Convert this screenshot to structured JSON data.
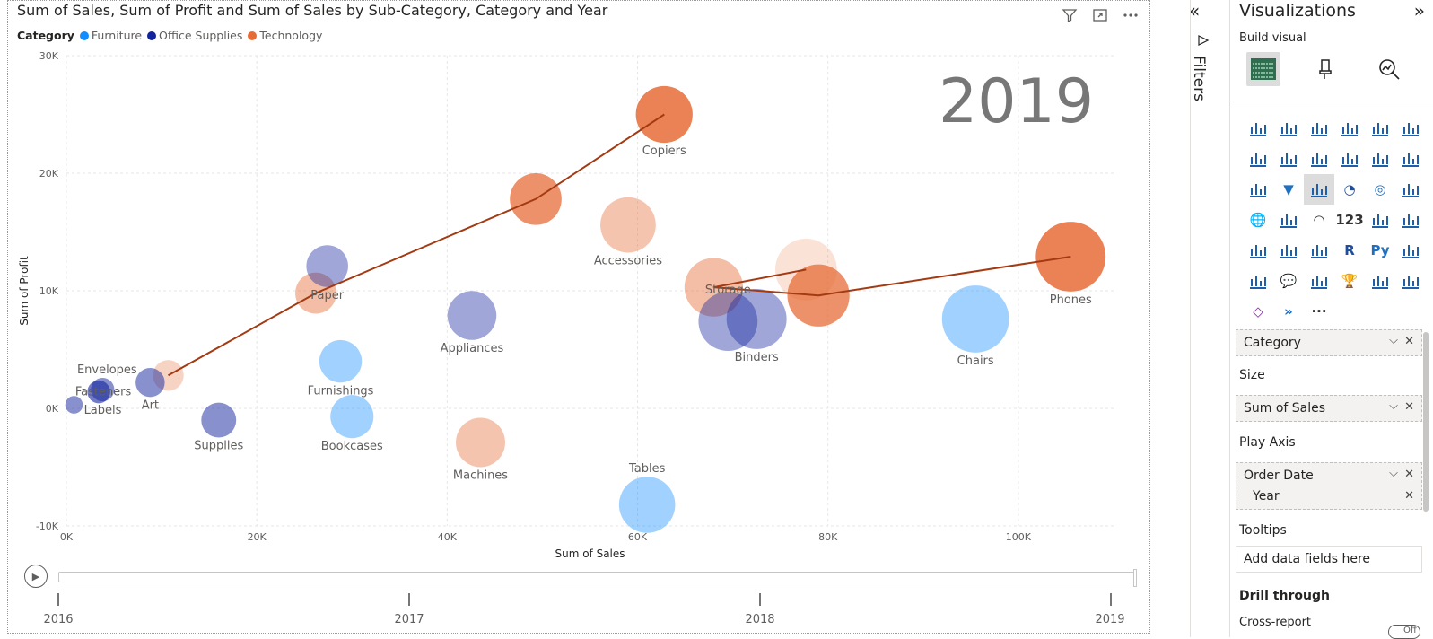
{
  "visual": {
    "title": "Sum of Sales, Sum of Profit and Sum of Sales by Sub-Category, Category and Year",
    "header_icons": [
      "filter-icon",
      "focus-mode-icon",
      "more-options-icon"
    ],
    "legend": {
      "title": "Category",
      "items": [
        {
          "label": "Furniture",
          "color": "#118DFF"
        },
        {
          "label": "Office Supplies",
          "color": "#12239E"
        },
        {
          "label": "Technology",
          "color": "#E66C37"
        }
      ]
    },
    "play_axis": {
      "ticks": [
        "2016",
        "2017",
        "2018",
        "2019"
      ],
      "current": "2019"
    }
  },
  "chart_data": {
    "type": "scatter",
    "title": "Sum of Sales, Sum of Profit and Sum of Sales by Sub-Category, Category and Year",
    "xlabel": "Sum of Sales",
    "ylabel": "Sum of Profit",
    "size_field": "Sum of Sales",
    "play_value": "2019",
    "xlim": [
      0,
      110000
    ],
    "ylim": [
      -10000,
      30000
    ],
    "x_ticks": [
      "0K",
      "20K",
      "40K",
      "60K",
      "80K",
      "100K"
    ],
    "x_tick_values": [
      0,
      20000,
      40000,
      60000,
      80000,
      100000
    ],
    "y_ticks": [
      "30K",
      "20K",
      "10K",
      "0K",
      "-10K"
    ],
    "y_tick_values": [
      30000,
      20000,
      10000,
      0,
      -10000
    ],
    "grid": true,
    "colors": {
      "Furniture": "#118DFF",
      "Office Supplies": "#12239E",
      "Technology": "#E66C37"
    },
    "points": [
      {
        "name": "Copiers",
        "category": "Technology",
        "x": 62800,
        "y": 25000,
        "opacity": 0.85
      },
      {
        "name": "Phones",
        "category": "Technology",
        "x": 105500,
        "y": 12900,
        "opacity": 0.85
      },
      {
        "name": "Accessories",
        "category": "Technology",
        "x": 59000,
        "y": 15600,
        "opacity": 0.4
      },
      {
        "name": "Machines",
        "category": "Technology",
        "x": 43500,
        "y": -2900,
        "opacity": 0.4
      },
      {
        "name": "Chairs",
        "category": "Furniture",
        "x": 95500,
        "y": 7600,
        "opacity": 0.4
      },
      {
        "name": "Tables",
        "category": "Furniture",
        "x": 61000,
        "y": -8200,
        "opacity": 0.4
      },
      {
        "name": "Furnishings",
        "category": "Furniture",
        "x": 28800,
        "y": 4000,
        "opacity": 0.4
      },
      {
        "name": "Bookcases",
        "category": "Furniture",
        "x": 30000,
        "y": -700,
        "opacity": 0.4
      },
      {
        "name": "Binders",
        "category": "Office Supplies",
        "x": 72500,
        "y": 7600,
        "opacity": 0.4
      },
      {
        "name": "Storage",
        "category": "Office Supplies",
        "x": 69500,
        "y": 7400,
        "opacity": 0.4
      },
      {
        "name": "Appliances",
        "category": "Office Supplies",
        "x": 42600,
        "y": 7900,
        "opacity": 0.4
      },
      {
        "name": "Paper",
        "category": "Office Supplies",
        "x": 27400,
        "y": 12100,
        "opacity": 0.4
      },
      {
        "name": "Art",
        "category": "Office Supplies",
        "x": 8800,
        "y": 2200,
        "opacity": 0.5
      },
      {
        "name": "Supplies",
        "category": "Office Supplies",
        "x": 16000,
        "y": -1000,
        "opacity": 0.5
      },
      {
        "name": "Envelopes",
        "category": "Office Supplies",
        "x": 3800,
        "y": 1600,
        "opacity": 0.5
      },
      {
        "name": "Fasteners",
        "category": "Office Supplies",
        "x": 3400,
        "y": 1400,
        "opacity": 0.6
      },
      {
        "name": "Labels",
        "category": "Office Supplies",
        "x": 800,
        "y": 300,
        "opacity": 0.5
      }
    ],
    "extra_bubbles": [
      {
        "category": "Technology",
        "x": 49300,
        "y": 17800,
        "opacity": 0.75
      },
      {
        "category": "Technology",
        "x": 10700,
        "y": 2800,
        "opacity": 0.3
      },
      {
        "category": "Technology",
        "x": 26200,
        "y": 9800,
        "opacity": 0.45
      },
      {
        "category": "Technology",
        "x": 68000,
        "y": 10300,
        "opacity": 0.45
      },
      {
        "category": "Technology",
        "x": 77700,
        "y": 11800,
        "opacity": 0.2
      },
      {
        "category": "Technology",
        "x": 79000,
        "y": 9600,
        "opacity": 0.75
      }
    ],
    "trails": [
      {
        "color": "#A33A12",
        "points": [
          [
            10700,
            2800
          ],
          [
            26200,
            9800
          ],
          [
            49300,
            17800
          ],
          [
            62800,
            25000
          ]
        ]
      },
      {
        "color": "#A33A12",
        "points": [
          [
            68000,
            10300
          ],
          [
            77700,
            11800
          ]
        ]
      },
      {
        "color": "#A33A12",
        "points": [
          [
            68000,
            10300
          ],
          [
            79000,
            9600
          ],
          [
            105500,
            12900
          ]
        ]
      }
    ]
  },
  "filters_pane": {
    "label": "Filters"
  },
  "viz_pane": {
    "title": "Visualizations",
    "build_label": "Build visual",
    "build_icons": [
      "build-visual-icon",
      "format-visual-icon",
      "analytics-icon"
    ],
    "fields": {
      "category_well": "Category",
      "size_label": "Size",
      "size_well": "Sum of Sales",
      "play_label": "Play Axis",
      "play_well": "Order Date",
      "play_sub": "Year",
      "tooltips_label": "Tooltips",
      "tooltips_placeholder": "Add data fields here",
      "drill_label": "Drill through",
      "cross_report": "Cross-report",
      "toggle": "Off"
    }
  }
}
